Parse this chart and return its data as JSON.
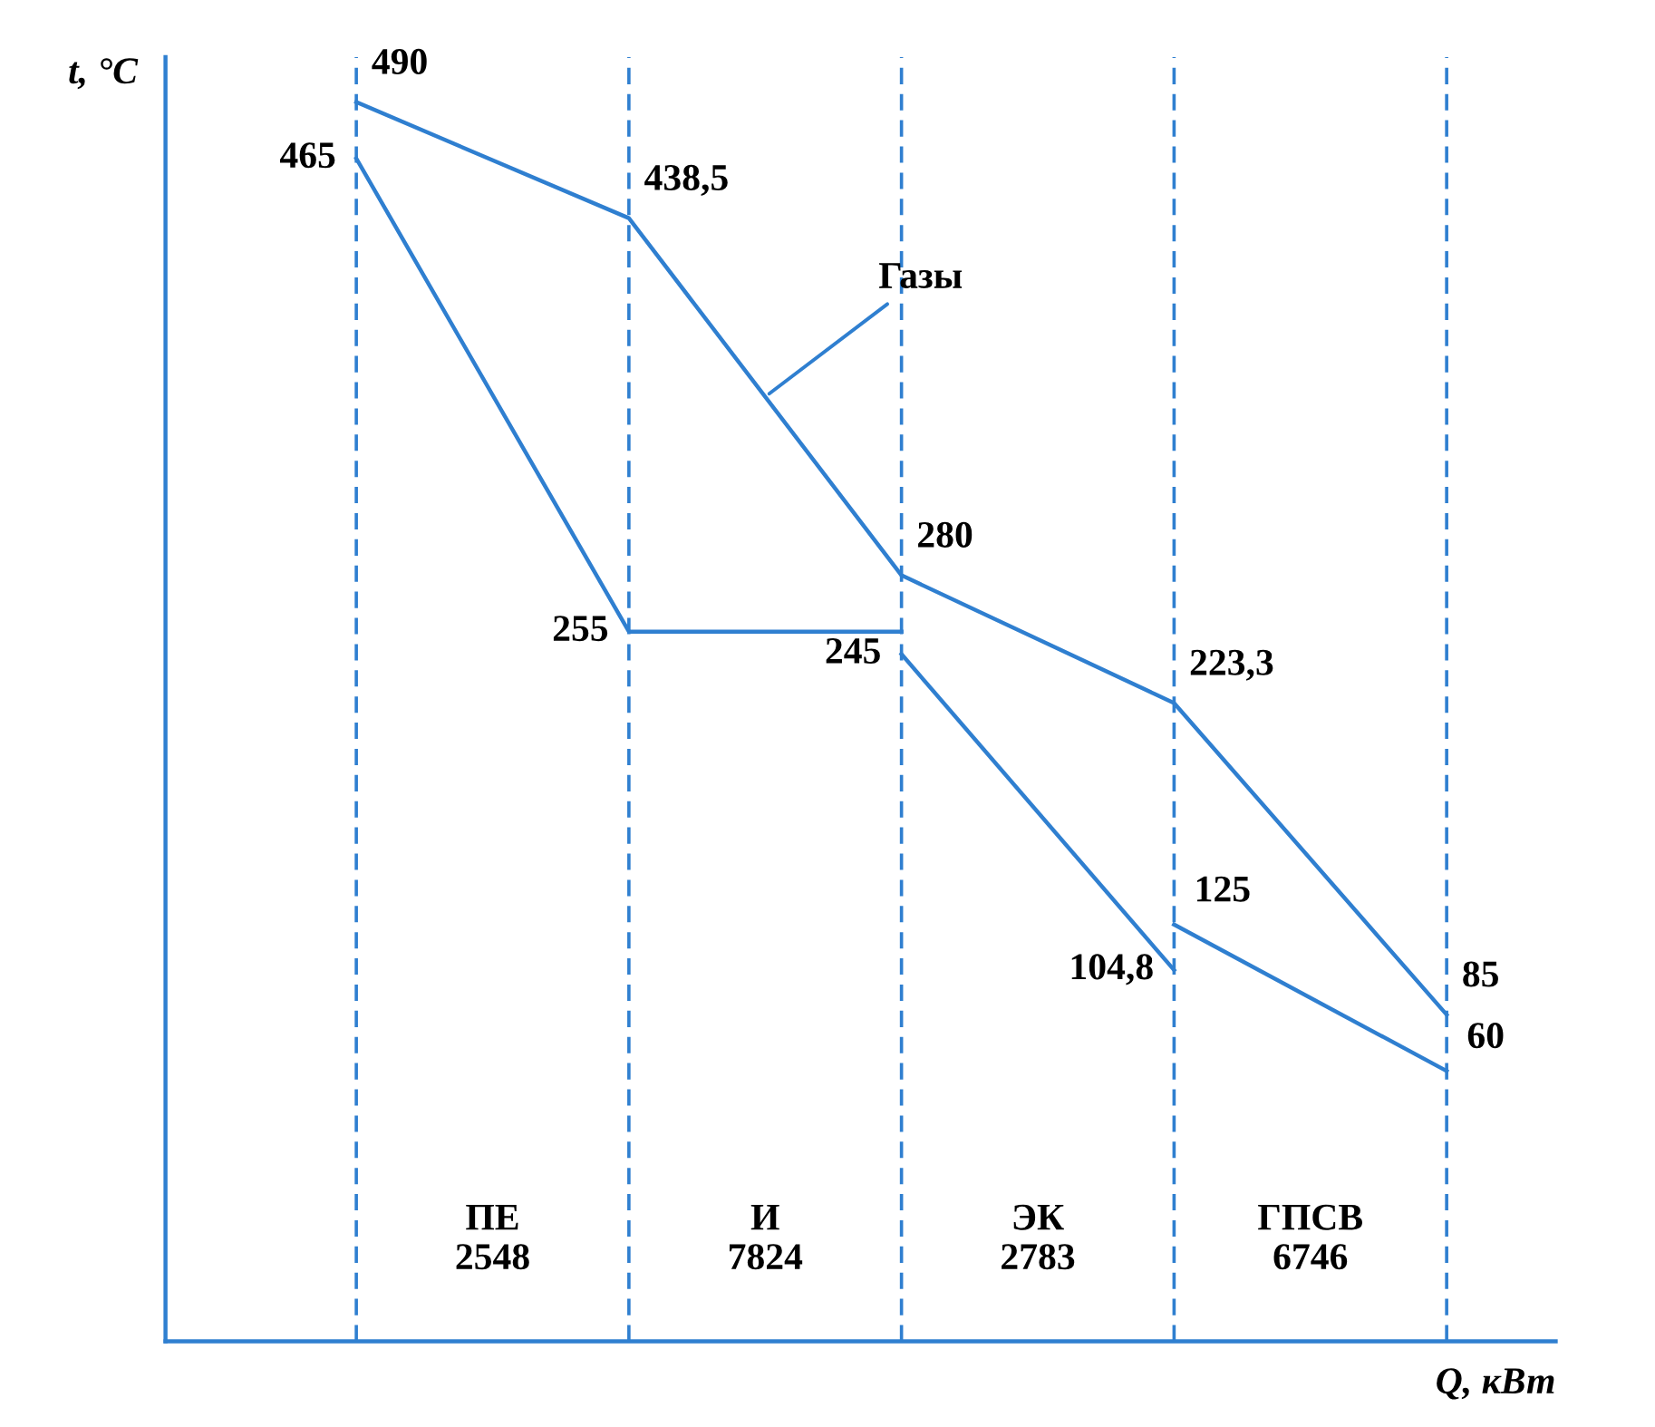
{
  "chart_data": {
    "type": "line",
    "xlabel": "Q, кВт",
    "ylabel": "t, °C",
    "categories": [
      null,
      null,
      null,
      null,
      null
    ],
    "series": [
      {
        "name": "Газы",
        "color": "#2f7fd0",
        "values": [
          490,
          438.5,
          280,
          223.3,
          85
        ],
        "value_labels": [
          "490",
          "438,5",
          "280",
          "223,3",
          "85"
        ]
      },
      {
        "color": "#2f7fd0",
        "values": [
          465,
          255,
          255,
          null,
          null
        ],
        "value_labels": [
          "465",
          "255",
          null,
          null,
          null
        ]
      },
      {
        "color": "#2f7fd0",
        "values": [
          null,
          null,
          245,
          104.8,
          null
        ],
        "value_labels": [
          null,
          null,
          "245",
          "104,8",
          null
        ]
      },
      {
        "color": "#2f7fd0",
        "values": [
          null,
          null,
          null,
          125,
          60
        ],
        "value_labels": [
          null,
          null,
          null,
          "125",
          "60"
        ]
      }
    ],
    "annotations": [
      "ПЕ\n2548",
      "И\n7824",
      "ЭК\n2783",
      "ГПСВ\n6746"
    ],
    "ylim": [
      -60,
      510
    ],
    "grid": "x",
    "legend": false
  }
}
